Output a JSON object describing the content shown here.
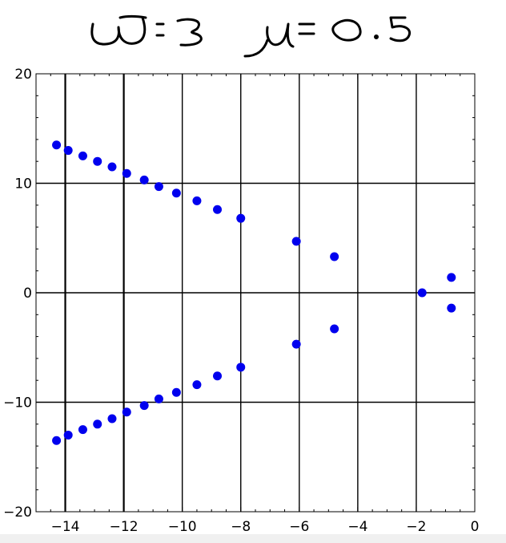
{
  "annotation": {
    "text": "ω = 3   μ = 0.5"
  },
  "chart_data": {
    "type": "scatter",
    "title": "",
    "xlabel": "",
    "ylabel": "",
    "xlim": [
      -15,
      0
    ],
    "ylim": [
      -20,
      20
    ],
    "grid": true,
    "x_gridlines": [
      -14,
      -12,
      -10,
      -8,
      -6,
      -4,
      -2
    ],
    "y_gridlines": [
      -10,
      0,
      10
    ],
    "x_ticks": [
      -14,
      -12,
      -10,
      -8,
      -6,
      -4,
      -2,
      0
    ],
    "x_tick_labels": [
      "−14",
      "−12",
      "−10",
      "−8",
      "−6",
      "−4",
      "−2",
      "0"
    ],
    "y_ticks": [
      -20,
      -10,
      0,
      10,
      20
    ],
    "y_tick_labels": [
      "−20",
      "−10",
      "0",
      "10",
      "20"
    ],
    "marker_color": "#0000ee",
    "series": [
      {
        "points": [
          [
            -14.3,
            13.5
          ],
          [
            -13.9,
            13.0
          ],
          [
            -13.4,
            12.5
          ],
          [
            -12.9,
            12.0
          ],
          [
            -12.4,
            11.5
          ],
          [
            -11.9,
            10.9
          ],
          [
            -11.3,
            10.3
          ],
          [
            -10.8,
            9.7
          ],
          [
            -10.2,
            9.1
          ],
          [
            -9.5,
            8.4
          ],
          [
            -8.8,
            7.6
          ],
          [
            -8.0,
            6.8
          ],
          [
            -6.1,
            4.7
          ],
          [
            -4.8,
            3.3
          ],
          [
            -1.8,
            0.0
          ],
          [
            -0.8,
            1.4
          ],
          [
            -0.8,
            -1.4
          ],
          [
            -4.8,
            -3.3
          ],
          [
            -6.1,
            -4.7
          ],
          [
            -8.0,
            -6.8
          ],
          [
            -8.8,
            -7.6
          ],
          [
            -9.5,
            -8.4
          ],
          [
            -10.2,
            -9.1
          ],
          [
            -10.8,
            -9.7
          ],
          [
            -11.3,
            -10.3
          ],
          [
            -11.9,
            -10.9
          ],
          [
            -12.4,
            -11.5
          ],
          [
            -12.9,
            -12.0
          ],
          [
            -13.4,
            -12.5
          ],
          [
            -13.9,
            -13.0
          ],
          [
            -14.3,
            -13.5
          ]
        ]
      }
    ]
  }
}
